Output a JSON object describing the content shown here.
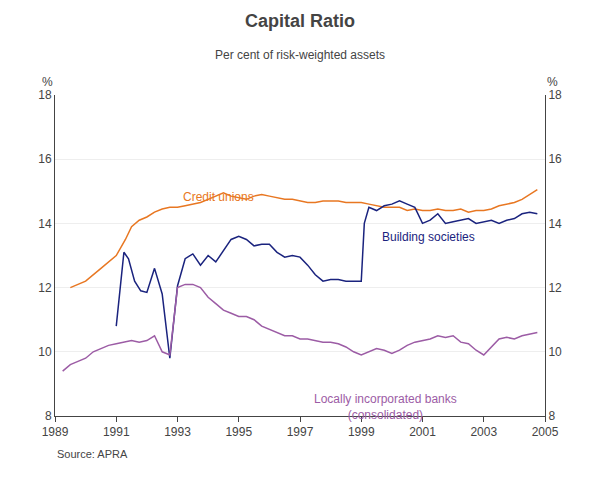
{
  "chart_data": {
    "type": "line",
    "title": "Capital Ratio",
    "subtitle": "Per cent of risk-weighted assets",
    "source": "Source: APRA",
    "ylabel": "%",
    "y2label": "%",
    "xlim": [
      1989.0,
      2005.0
    ],
    "xticks": [
      1989,
      1991,
      1993,
      1995,
      1997,
      1999,
      2001,
      2003,
      2005
    ],
    "ylim": [
      8,
      18
    ],
    "yticks": [
      8,
      10,
      12,
      14,
      16,
      18
    ],
    "y2lim": [
      8,
      18
    ],
    "y2ticks": [
      8,
      10,
      12,
      14,
      16,
      18
    ],
    "grid": true,
    "series": [
      {
        "color": "#E87722",
        "x": [
          1989.5,
          1990.0,
          1990.5,
          1991.0,
          1991.3,
          1991.5,
          1991.75,
          1992.0,
          1992.25,
          1992.5,
          1992.75,
          1993.0,
          1993.25,
          1993.5,
          1993.75,
          1994.0,
          1994.25,
          1994.5,
          1994.75,
          1995.0,
          1995.25,
          1995.5,
          1995.75,
          1996.0,
          1996.25,
          1996.5,
          1996.75,
          1997.0,
          1997.25,
          1997.5,
          1997.75,
          1998.0,
          1998.25,
          1998.5,
          1998.75,
          1999.0,
          1999.25,
          1999.5,
          1999.75,
          2000.0,
          2000.25,
          2000.5,
          2000.75,
          2001.0,
          2001.25,
          2001.5,
          2001.75,
          2002.0,
          2002.25,
          2002.5,
          2002.75,
          2003.0,
          2003.25,
          2003.5,
          2003.75,
          2004.0,
          2004.25,
          2004.5,
          2004.75
        ],
        "values": [
          12.0,
          12.2,
          12.6,
          13.0,
          13.5,
          13.9,
          14.1,
          14.2,
          14.35,
          14.45,
          14.5,
          14.5,
          14.55,
          14.6,
          14.65,
          14.75,
          14.85,
          14.95,
          14.85,
          14.8,
          14.75,
          14.85,
          14.9,
          14.85,
          14.8,
          14.75,
          14.75,
          14.7,
          14.65,
          14.65,
          14.7,
          14.7,
          14.7,
          14.65,
          14.65,
          14.65,
          14.6,
          14.55,
          14.5,
          14.5,
          14.5,
          14.4,
          14.45,
          14.4,
          14.4,
          14.45,
          14.4,
          14.4,
          14.45,
          14.35,
          14.4,
          14.4,
          14.45,
          14.55,
          14.6,
          14.65,
          14.75,
          14.9,
          15.05
        ]
      },
      {
        "color": "#1A237E",
        "x": [
          1991.0,
          1991.25,
          1991.4,
          1991.6,
          1991.8,
          1992.0,
          1992.25,
          1992.5,
          1992.75,
          1993.0,
          1993.25,
          1993.5,
          1993.75,
          1994.0,
          1994.25,
          1994.5,
          1994.75,
          1995.0,
          1995.25,
          1995.5,
          1995.75,
          1996.0,
          1996.25,
          1996.5,
          1996.75,
          1997.0,
          1997.25,
          1997.5,
          1997.75,
          1998.0,
          1998.25,
          1998.5,
          1998.75,
          1999.0,
          1999.1,
          1999.25,
          1999.5,
          1999.75,
          2000.0,
          2000.25,
          2000.5,
          2000.75,
          2001.0,
          2001.25,
          2001.5,
          2001.75,
          2002.0,
          2002.25,
          2002.5,
          2002.75,
          2003.0,
          2003.25,
          2003.5,
          2003.75,
          2004.0,
          2004.25,
          2004.5,
          2004.75
        ],
        "values": [
          10.8,
          13.1,
          12.9,
          12.2,
          11.9,
          11.85,
          12.6,
          11.8,
          9.8,
          12.05,
          12.9,
          13.05,
          12.7,
          13.0,
          12.8,
          13.15,
          13.5,
          13.6,
          13.5,
          13.3,
          13.35,
          13.35,
          13.1,
          12.95,
          13.0,
          12.95,
          12.7,
          12.4,
          12.2,
          12.25,
          12.25,
          12.2,
          12.2,
          12.2,
          14.0,
          14.5,
          14.4,
          14.55,
          14.6,
          14.7,
          14.6,
          14.5,
          14.0,
          14.1,
          14.3,
          14.0,
          14.05,
          14.1,
          14.15,
          14.0,
          14.05,
          14.1,
          14.0,
          14.1,
          14.15,
          14.3,
          14.35,
          14.3
        ]
      },
      {
        "color": "#9C5CA5",
        "x": [
          1989.25,
          1989.5,
          1989.75,
          1990.0,
          1990.25,
          1990.5,
          1990.75,
          1991.0,
          1991.25,
          1991.5,
          1991.75,
          1992.0,
          1992.25,
          1992.5,
          1992.75,
          1993.0,
          1993.25,
          1993.5,
          1993.75,
          1994.0,
          1994.25,
          1994.5,
          1994.75,
          1995.0,
          1995.25,
          1995.5,
          1995.75,
          1996.0,
          1996.25,
          1996.5,
          1996.75,
          1997.0,
          1997.25,
          1997.5,
          1997.75,
          1998.0,
          1998.25,
          1998.5,
          1998.75,
          1999.0,
          1999.25,
          1999.5,
          1999.75,
          2000.0,
          2000.25,
          2000.5,
          2000.75,
          2001.0,
          2001.25,
          2001.5,
          2001.75,
          2002.0,
          2002.25,
          2002.5,
          2002.75,
          2003.0,
          2003.25,
          2003.5,
          2003.75,
          2004.0,
          2004.25,
          2004.5,
          2004.75
        ],
        "values": [
          9.4,
          9.6,
          9.7,
          9.8,
          10.0,
          10.1,
          10.2,
          10.25,
          10.3,
          10.35,
          10.3,
          10.35,
          10.5,
          10.0,
          9.9,
          12.0,
          12.1,
          12.1,
          12.0,
          11.7,
          11.5,
          11.3,
          11.2,
          11.1,
          11.1,
          11.0,
          10.8,
          10.7,
          10.6,
          10.5,
          10.5,
          10.4,
          10.4,
          10.35,
          10.3,
          10.3,
          10.25,
          10.15,
          10.0,
          9.9,
          10.0,
          10.1,
          10.05,
          9.95,
          10.05,
          10.2,
          10.3,
          10.35,
          10.4,
          10.5,
          10.45,
          10.5,
          10.3,
          10.25,
          10.05,
          9.9,
          10.15,
          10.4,
          10.45,
          10.4,
          10.5,
          10.55,
          10.6
        ]
      }
    ],
    "annotations": [
      {
        "x": 1993.1,
        "y": 14.55,
        "text": "Credit unions",
        "color": "#E87722"
      },
      {
        "x": 1999.6,
        "y": 13.3,
        "text": "Building societies",
        "color": "#1A237E"
      },
      {
        "x": 1999.8,
        "y": 8.82,
        "text": "Locally incorporated banks\n(consolidated)",
        "color": "#9C5CA5"
      }
    ]
  }
}
